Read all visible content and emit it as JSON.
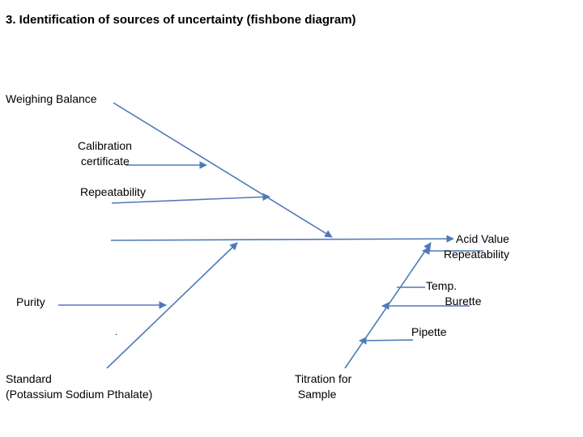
{
  "title": "3. Identification of sources of uncertainty (fishbone diagram)",
  "labels": {
    "weighing_balance": "Weighing Balance",
    "calibration_certificate": "Calibration\n certificate",
    "repeatability": "Repeatability",
    "acid_value_repeatability": "Acid Value\nRepeatability",
    "purity": "Purity",
    "temp_burette": "Temp.\n      Burette",
    "pipette": "Pipette",
    "dot": ".",
    "standard": "Standard\n(Potassium Sodium Pthalate)",
    "titration_for_sample": "Titration for\n Sample"
  },
  "colors": {
    "line": "#4f7ab8"
  }
}
